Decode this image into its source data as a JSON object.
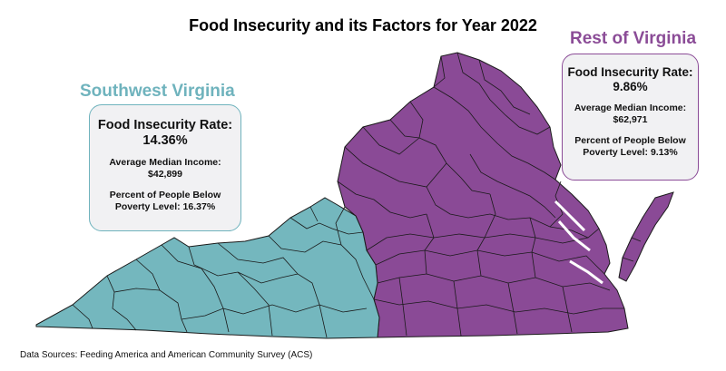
{
  "title": "Food Insecurity and its Factors for Year 2022",
  "colors": {
    "southwest": "#74b7be",
    "rest": "#8a4a96",
    "southwest_text": "#6fb3bd",
    "rest_text": "#8b4c97",
    "card_bg": "#f1f1f3",
    "county_lines": "#1a1a1a"
  },
  "southwest": {
    "region_label": "Southwest Virginia",
    "rate_label": "Food Insecurity Rate:",
    "rate_value": "14.36%",
    "income_label": "Average Median Income:",
    "income_value": "$42,899",
    "poverty_line1": "Percent of People Below",
    "poverty_line2": "Poverty Level: 16.37%"
  },
  "rest": {
    "region_label": "Rest of Virginia",
    "rate_label": "Food Insecurity Rate:",
    "rate_value": "9.86%",
    "income_label": "Average Median Income:",
    "income_value": "$62,971",
    "poverty_line1": "Percent of People Below",
    "poverty_line2": "Poverty Level: 9.13%"
  },
  "source": "Data Sources: Feeding America and American Community Survey (ACS)"
}
